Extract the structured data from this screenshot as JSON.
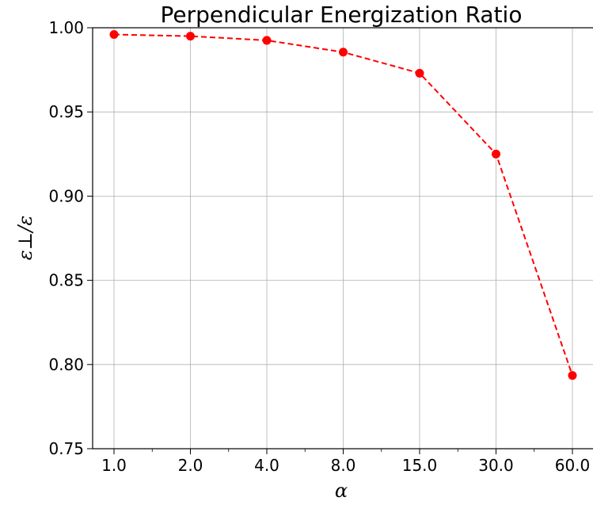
{
  "chart_data": {
    "type": "line",
    "title": "Perpendicular Energization Ratio",
    "xlabel": "α",
    "ylabel": "ε⊥/ε",
    "categories": [
      "1.0",
      "2.0",
      "4.0",
      "8.0",
      "15.0",
      "30.0",
      "60.0"
    ],
    "series": [
      {
        "values": [
          0.996,
          0.995,
          0.9925,
          0.9855,
          0.973,
          0.925,
          0.7935
        ],
        "color": "#ff0000",
        "line_style": "dashed",
        "marker": "circle"
      }
    ],
    "ylim": [
      0.75,
      1.0
    ],
    "yticks": [
      "0.75",
      "0.80",
      "0.85",
      "0.90",
      "0.95",
      "1.00"
    ],
    "grid": true
  }
}
